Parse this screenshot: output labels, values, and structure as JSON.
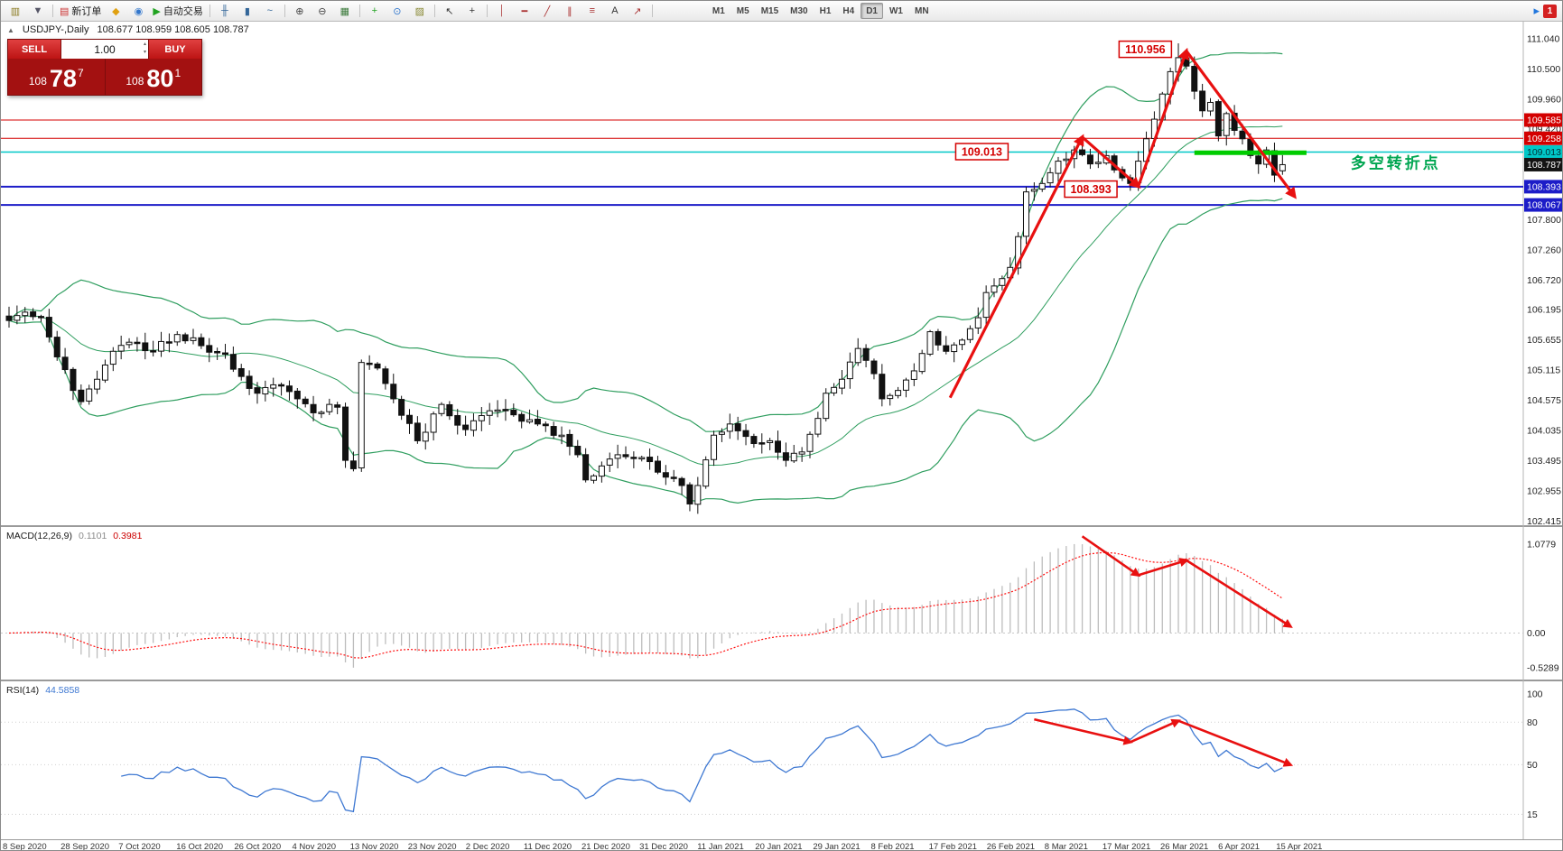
{
  "toolbar": {
    "items": [
      {
        "name": "new-chart-button",
        "glyph": "▥",
        "color": "#8a7a20"
      },
      {
        "name": "profiles-button",
        "glyph": "▼",
        "color": "#556"
      },
      {
        "sep": true
      },
      {
        "name": "new-order-button",
        "glyph": "▤",
        "color": "#cc3333",
        "label": "新订单"
      },
      {
        "name": "expert-advisors-button",
        "glyph": "◆",
        "color": "#e0a010"
      },
      {
        "name": "scripts-button",
        "glyph": "◉",
        "color": "#3377cc"
      },
      {
        "name": "auto-trading-button",
        "glyph": "▶",
        "color": "#21a321",
        "label": "自动交易"
      },
      {
        "sep": true
      },
      {
        "name": "bar-chart-mode-button",
        "glyph": "╫",
        "color": "#336699"
      },
      {
        "name": "candlestick-chart-mode-button",
        "glyph": "▮",
        "color": "#336699"
      },
      {
        "name": "line-chart-mode-button",
        "glyph": "~",
        "color": "#336699"
      },
      {
        "sep": true
      },
      {
        "name": "zoom-in-button",
        "glyph": "⊕",
        "color": "#444"
      },
      {
        "name": "zoom-out-button",
        "glyph": "⊖",
        "color": "#444"
      },
      {
        "name": "tile-windows-button",
        "glyph": "▦",
        "color": "#3b7a3b"
      },
      {
        "sep": true
      },
      {
        "name": "indicators-button",
        "glyph": "+",
        "color": "#21a321"
      },
      {
        "name": "cycles-button",
        "glyph": "⊙",
        "color": "#3377cc"
      },
      {
        "name": "templates-button",
        "glyph": "▨",
        "color": "#888833"
      },
      {
        "sep": true
      },
      {
        "name": "cursor-button",
        "glyph": "↖",
        "color": "#333"
      },
      {
        "name": "crosshair-button",
        "glyph": "+",
        "color": "#333"
      },
      {
        "sep": true
      },
      {
        "name": "vertical-line-button",
        "glyph": "│",
        "color": "#aa3333"
      },
      {
        "name": "horizontal-line-button",
        "glyph": "━",
        "color": "#aa3333"
      },
      {
        "name": "trendline-button",
        "glyph": "╱",
        "color": "#aa3333"
      },
      {
        "name": "channel-button",
        "glyph": "∥",
        "color": "#aa3333"
      },
      {
        "name": "fibonacci-button",
        "glyph": "≡",
        "color": "#aa3333"
      },
      {
        "name": "text-button",
        "glyph": "A",
        "color": "#333"
      },
      {
        "name": "arrows-button",
        "glyph": "↗",
        "color": "#aa3333"
      },
      {
        "sep": true
      }
    ],
    "timeframes": [
      "M1",
      "M5",
      "M15",
      "M30",
      "H1",
      "H4",
      "D1",
      "W1",
      "MN"
    ],
    "active_timeframe": "D1",
    "right_items": [
      {
        "name": "chart-pointer-icon",
        "glyph": "▸",
        "color": "#2277dd"
      }
    ],
    "window_badge": "1"
  },
  "chart_header": {
    "toggle_glyph": "▲",
    "symbol": "USDJPY-,Daily",
    "ohlc": "108.677 108.959 108.605 108.787"
  },
  "one_click": {
    "sell_label": "SELL",
    "buy_label": "BUY",
    "volume": "1.00",
    "spin_up_glyph": "▴",
    "spin_down_glyph": "▾",
    "sell_price": {
      "small": "108",
      "big": "78",
      "sup": "7"
    },
    "buy_price": {
      "small": "108",
      "big": "80",
      "sup": "1"
    }
  },
  "indicator_labels": {
    "macd_name": "MACD(12,26,9)",
    "macd_value_main": "0.1101",
    "macd_value_signal": "0.3981",
    "rsi_name": "RSI(14)",
    "rsi_value": "44.5858"
  },
  "axes": {
    "price_labels": [
      {
        "text": "111.040",
        "v": 111.04
      },
      {
        "text": "110.500",
        "v": 110.5
      },
      {
        "text": "109.960",
        "v": 109.96
      },
      {
        "text": "109.420",
        "v": 109.42
      },
      {
        "text": "107.800",
        "v": 107.8
      },
      {
        "text": "107.260",
        "v": 107.26
      },
      {
        "text": "106.720",
        "v": 106.72
      },
      {
        "text": "106.195",
        "v": 106.195
      },
      {
        "text": "105.655",
        "v": 105.655
      },
      {
        "text": "105.115",
        "v": 105.115
      },
      {
        "text": "104.575",
        "v": 104.575
      },
      {
        "text": "104.035",
        "v": 104.035
      },
      {
        "text": "103.495",
        "v": 103.495
      },
      {
        "text": "102.955",
        "v": 102.955
      },
      {
        "text": "102.415",
        "v": 102.415
      }
    ],
    "price_badges": [
      {
        "text": "109.585",
        "v": 109.585,
        "bg": "#d40000",
        "fg": "#ffffff"
      },
      {
        "text": "109.258",
        "v": 109.258,
        "bg": "#d40000",
        "fg": "#ffffff"
      },
      {
        "text": "109.013",
        "v": 109.013,
        "bg": "#00c8c8",
        "fg": "#00333a"
      },
      {
        "text": "108.787",
        "v": 108.787,
        "bg": "#141414",
        "fg": "#ffffff"
      },
      {
        "text": "108.393",
        "v": 108.393,
        "bg": "#1c1cc8",
        "fg": "#ffffff"
      },
      {
        "text": "108.067",
        "v": 108.067,
        "bg": "#1c1cc8",
        "fg": "#ffffff"
      }
    ],
    "macd_labels": [
      {
        "text": "1.0779",
        "at": "max"
      },
      {
        "text": "0.00",
        "at": "zero"
      },
      {
        "text": "-0.5289",
        "at": "min"
      }
    ],
    "rsi_labels": [
      {
        "text": "100",
        "v": 100
      },
      {
        "text": "80",
        "v": 80
      },
      {
        "text": "50",
        "v": 50
      },
      {
        "text": "15",
        "v": 15
      }
    ],
    "rsi_level_lines": [
      80,
      50,
      15
    ],
    "dates": [
      "8 Sep 2020",
      "28 Sep 2020",
      "7 Oct 2020",
      "16 Oct 2020",
      "26 Oct 2020",
      "4 Nov 2020",
      "13 Nov 2020",
      "23 Nov 2020",
      "2 Dec 2020",
      "11 Dec 2020",
      "21 Dec 2020",
      "31 Dec 2020",
      "11 Jan 2021",
      "20 Jan 2021",
      "29 Jan 2021",
      "8 Feb 2021",
      "17 Feb 2021",
      "26 Feb 2021",
      "8 Mar 2021",
      "17 Mar 2021",
      "26 Mar 2021",
      "6 Apr 2021",
      "15 Apr 2021"
    ]
  },
  "chart_data": {
    "type": "candlestick",
    "symbol": "USDJPY",
    "timeframe": "Daily",
    "candle_count": 160,
    "ohlc_current": {
      "open": 108.677,
      "high": 108.959,
      "low": 108.605,
      "close": 108.787
    },
    "close_anchors": [
      [
        0,
        106.0
      ],
      [
        2,
        106.15
      ],
      [
        4,
        106.05
      ],
      [
        6,
        105.35
      ],
      [
        8,
        104.75
      ],
      [
        9,
        104.55
      ],
      [
        11,
        104.95
      ],
      [
        13,
        105.45
      ],
      [
        16,
        105.6
      ],
      [
        18,
        105.45
      ],
      [
        21,
        105.75
      ],
      [
        24,
        105.55
      ],
      [
        27,
        105.4
      ],
      [
        29,
        105.0
      ],
      [
        31,
        104.7
      ],
      [
        33,
        104.85
      ],
      [
        36,
        104.6
      ],
      [
        38,
        104.35
      ],
      [
        40,
        104.5
      ],
      [
        41,
        104.45
      ],
      [
        42,
        103.5
      ],
      [
        43,
        103.35
      ],
      [
        44,
        105.25
      ],
      [
        46,
        105.15
      ],
      [
        48,
        104.6
      ],
      [
        51,
        103.85
      ],
      [
        54,
        104.5
      ],
      [
        57,
        104.05
      ],
      [
        59,
        104.3
      ],
      [
        61,
        104.4
      ],
      [
        64,
        104.2
      ],
      [
        66,
        104.15
      ],
      [
        69,
        103.95
      ],
      [
        71,
        103.6
      ],
      [
        72,
        103.15
      ],
      [
        74,
        103.4
      ],
      [
        76,
        103.6
      ],
      [
        79,
        103.55
      ],
      [
        82,
        103.2
      ],
      [
        84,
        103.05
      ],
      [
        85,
        102.72
      ],
      [
        86,
        103.05
      ],
      [
        88,
        103.95
      ],
      [
        90,
        104.15
      ],
      [
        93,
        103.8
      ],
      [
        95,
        103.85
      ],
      [
        97,
        103.5
      ],
      [
        99,
        103.65
      ],
      [
        101,
        104.25
      ],
      [
        102,
        104.7
      ],
      [
        104,
        104.95
      ],
      [
        106,
        105.5
      ],
      [
        108,
        105.05
      ],
      [
        109,
        104.6
      ],
      [
        111,
        104.75
      ],
      [
        113,
        105.1
      ],
      [
        115,
        105.8
      ],
      [
        117,
        105.45
      ],
      [
        119,
        105.65
      ],
      [
        121,
        106.05
      ],
      [
        122,
        106.5
      ],
      [
        124,
        106.75
      ],
      [
        125,
        106.95
      ],
      [
        126,
        107.5
      ],
      [
        127,
        108.3
      ],
      [
        129,
        108.45
      ],
      [
        131,
        108.85
      ],
      [
        133,
        109.05
      ],
      [
        135,
        108.8
      ],
      [
        137,
        108.95
      ],
      [
        139,
        108.55
      ],
      [
        140,
        108.45
      ],
      [
        141,
        108.85
      ],
      [
        142,
        109.25
      ],
      [
        143,
        109.6
      ],
      [
        144,
        110.05
      ],
      [
        145,
        110.45
      ],
      [
        146,
        110.7
      ],
      [
        147,
        110.55
      ],
      [
        148,
        110.1
      ],
      [
        149,
        109.75
      ],
      [
        150,
        109.9
      ],
      [
        151,
        109.3
      ],
      [
        152,
        109.7
      ],
      [
        153,
        109.4
      ],
      [
        154,
        109.25
      ],
      [
        155,
        108.95
      ],
      [
        156,
        108.8
      ],
      [
        157,
        109.05
      ],
      [
        158,
        108.6
      ],
      [
        159,
        108.79
      ]
    ],
    "forced_extremes": [
      [
        85,
        "low",
        102.59
      ],
      [
        146,
        "high",
        110.956
      ]
    ],
    "bollinger": {
      "period": 20,
      "deviation": 2
    },
    "macd_params": {
      "fast": 12,
      "slow": 26,
      "signal": 9
    },
    "rsi_params": {
      "period": 14
    },
    "hlines": [
      {
        "price": 109.585,
        "color": "#d40000",
        "width": 1
      },
      {
        "price": 109.258,
        "color": "#d40000",
        "width": 1
      },
      {
        "price": 109.013,
        "color": "#00c8c8",
        "width": 1.5
      },
      {
        "price": 108.393,
        "color": "#1c1cc8",
        "width": 2
      },
      {
        "price": 108.067,
        "color": "#1c1cc8",
        "width": 2
      }
    ],
    "green_segment": {
      "price": 109.0,
      "from_idx": 148,
      "to_idx": 162,
      "color": "#00cc00",
      "width": 5
    },
    "price_tags": [
      {
        "text": "110.956",
        "idx": 138.6,
        "price": 110.85
      },
      {
        "text": "109.013",
        "idx": 118.2,
        "price": 109.02
      },
      {
        "text": "108.393",
        "idx": 131.8,
        "price": 108.35
      }
    ],
    "turning_point_tag": {
      "text": "多空转折点",
      "idx": 167.5,
      "price": 108.72,
      "color": "#00a651"
    },
    "trend_arrows_main": [
      [
        117.5,
        104.62
      ],
      [
        134,
        109.28
      ],
      [
        141,
        108.4
      ],
      [
        147,
        110.82
      ],
      [
        160.5,
        108.22
      ]
    ],
    "trend_arrows_macd": [
      [
        134,
        1.17
      ],
      [
        141,
        0.7
      ],
      [
        147,
        0.88
      ],
      [
        160,
        0.08
      ]
    ],
    "trend_arrows_rsi": [
      [
        128,
        82
      ],
      [
        140,
        66
      ],
      [
        146,
        81
      ],
      [
        160,
        50
      ]
    ]
  }
}
